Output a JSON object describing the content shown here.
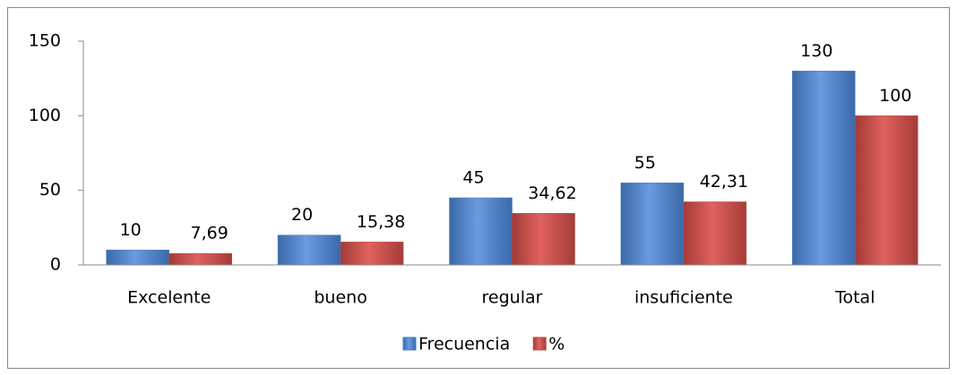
{
  "chart_data": {
    "type": "bar",
    "categories": [
      "Excelente",
      "bueno",
      "regular",
      "insuficiente",
      "Total"
    ],
    "series": [
      {
        "name": "Frecuencia",
        "color": "#4a7ebb",
        "values": [
          10,
          20,
          45,
          55,
          130
        ]
      },
      {
        "name": "%",
        "color": "#be4b48",
        "values": [
          7.69,
          15.38,
          34.62,
          42.31,
          100
        ],
        "value_labels": [
          "7,69",
          "15,38",
          "34,62",
          "42,31",
          "100"
        ]
      }
    ],
    "ylim": [
      0,
      150
    ],
    "yticks": [
      0,
      50,
      100,
      150
    ],
    "legend": "bottom"
  }
}
